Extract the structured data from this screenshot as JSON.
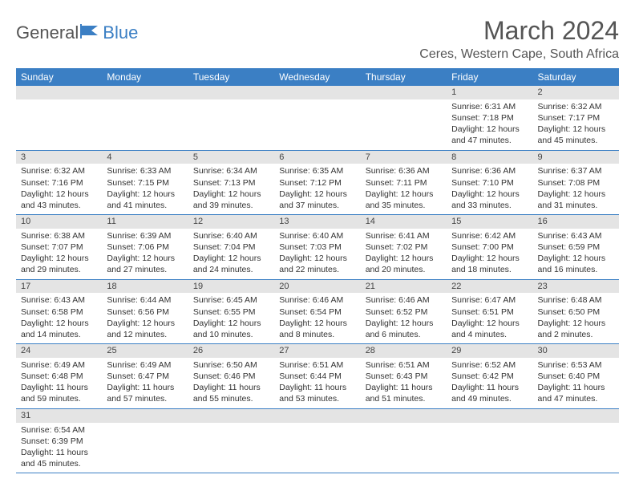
{
  "brand": {
    "general": "General",
    "blue": "Blue"
  },
  "title": "March 2024",
  "location": "Ceres, Western Cape, South Africa",
  "colors": {
    "header_bg": "#3b7fc4",
    "daynum_bg": "#e4e4e4",
    "rule": "#3b7fc4"
  },
  "columns": [
    "Sunday",
    "Monday",
    "Tuesday",
    "Wednesday",
    "Thursday",
    "Friday",
    "Saturday"
  ],
  "weeks": [
    [
      null,
      null,
      null,
      null,
      null,
      {
        "n": "1",
        "sr": "6:31 AM",
        "ss": "7:18 PM",
        "dl": "12 hours and 47 minutes."
      },
      {
        "n": "2",
        "sr": "6:32 AM",
        "ss": "7:17 PM",
        "dl": "12 hours and 45 minutes."
      }
    ],
    [
      {
        "n": "3",
        "sr": "6:32 AM",
        "ss": "7:16 PM",
        "dl": "12 hours and 43 minutes."
      },
      {
        "n": "4",
        "sr": "6:33 AM",
        "ss": "7:15 PM",
        "dl": "12 hours and 41 minutes."
      },
      {
        "n": "5",
        "sr": "6:34 AM",
        "ss": "7:13 PM",
        "dl": "12 hours and 39 minutes."
      },
      {
        "n": "6",
        "sr": "6:35 AM",
        "ss": "7:12 PM",
        "dl": "12 hours and 37 minutes."
      },
      {
        "n": "7",
        "sr": "6:36 AM",
        "ss": "7:11 PM",
        "dl": "12 hours and 35 minutes."
      },
      {
        "n": "8",
        "sr": "6:36 AM",
        "ss": "7:10 PM",
        "dl": "12 hours and 33 minutes."
      },
      {
        "n": "9",
        "sr": "6:37 AM",
        "ss": "7:08 PM",
        "dl": "12 hours and 31 minutes."
      }
    ],
    [
      {
        "n": "10",
        "sr": "6:38 AM",
        "ss": "7:07 PM",
        "dl": "12 hours and 29 minutes."
      },
      {
        "n": "11",
        "sr": "6:39 AM",
        "ss": "7:06 PM",
        "dl": "12 hours and 27 minutes."
      },
      {
        "n": "12",
        "sr": "6:40 AM",
        "ss": "7:04 PM",
        "dl": "12 hours and 24 minutes."
      },
      {
        "n": "13",
        "sr": "6:40 AM",
        "ss": "7:03 PM",
        "dl": "12 hours and 22 minutes."
      },
      {
        "n": "14",
        "sr": "6:41 AM",
        "ss": "7:02 PM",
        "dl": "12 hours and 20 minutes."
      },
      {
        "n": "15",
        "sr": "6:42 AM",
        "ss": "7:00 PM",
        "dl": "12 hours and 18 minutes."
      },
      {
        "n": "16",
        "sr": "6:43 AM",
        "ss": "6:59 PM",
        "dl": "12 hours and 16 minutes."
      }
    ],
    [
      {
        "n": "17",
        "sr": "6:43 AM",
        "ss": "6:58 PM",
        "dl": "12 hours and 14 minutes."
      },
      {
        "n": "18",
        "sr": "6:44 AM",
        "ss": "6:56 PM",
        "dl": "12 hours and 12 minutes."
      },
      {
        "n": "19",
        "sr": "6:45 AM",
        "ss": "6:55 PM",
        "dl": "12 hours and 10 minutes."
      },
      {
        "n": "20",
        "sr": "6:46 AM",
        "ss": "6:54 PM",
        "dl": "12 hours and 8 minutes."
      },
      {
        "n": "21",
        "sr": "6:46 AM",
        "ss": "6:52 PM",
        "dl": "12 hours and 6 minutes."
      },
      {
        "n": "22",
        "sr": "6:47 AM",
        "ss": "6:51 PM",
        "dl": "12 hours and 4 minutes."
      },
      {
        "n": "23",
        "sr": "6:48 AM",
        "ss": "6:50 PM",
        "dl": "12 hours and 2 minutes."
      }
    ],
    [
      {
        "n": "24",
        "sr": "6:49 AM",
        "ss": "6:48 PM",
        "dl": "11 hours and 59 minutes."
      },
      {
        "n": "25",
        "sr": "6:49 AM",
        "ss": "6:47 PM",
        "dl": "11 hours and 57 minutes."
      },
      {
        "n": "26",
        "sr": "6:50 AM",
        "ss": "6:46 PM",
        "dl": "11 hours and 55 minutes."
      },
      {
        "n": "27",
        "sr": "6:51 AM",
        "ss": "6:44 PM",
        "dl": "11 hours and 53 minutes."
      },
      {
        "n": "28",
        "sr": "6:51 AM",
        "ss": "6:43 PM",
        "dl": "11 hours and 51 minutes."
      },
      {
        "n": "29",
        "sr": "6:52 AM",
        "ss": "6:42 PM",
        "dl": "11 hours and 49 minutes."
      },
      {
        "n": "30",
        "sr": "6:53 AM",
        "ss": "6:40 PM",
        "dl": "11 hours and 47 minutes."
      }
    ],
    [
      {
        "n": "31",
        "sr": "6:54 AM",
        "ss": "6:39 PM",
        "dl": "11 hours and 45 minutes."
      },
      null,
      null,
      null,
      null,
      null,
      null
    ]
  ],
  "labels": {
    "sunrise": "Sunrise: ",
    "sunset": "Sunset: ",
    "daylight": "Daylight: "
  }
}
